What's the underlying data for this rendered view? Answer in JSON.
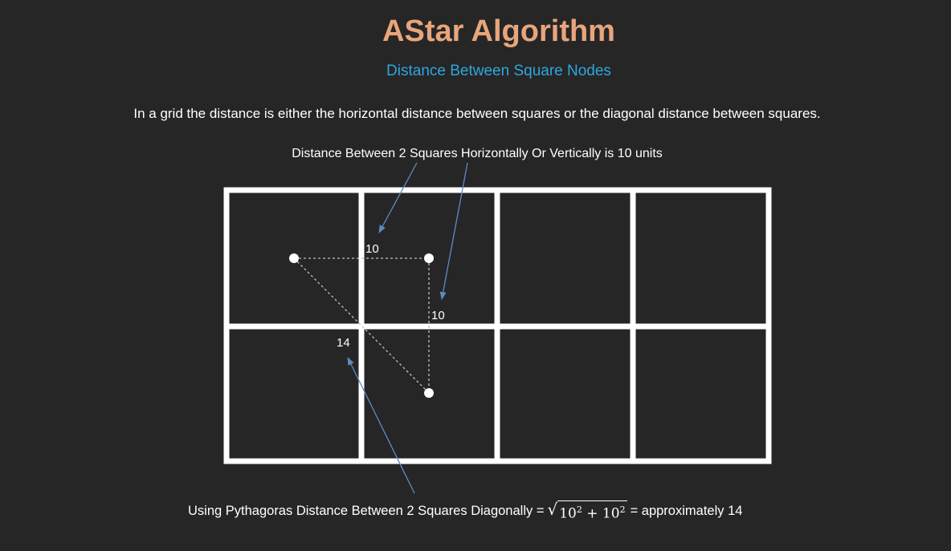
{
  "title": "AStar Algorithm",
  "subtitle": "Distance Between  Square Nodes",
  "intro": "In a grid the distance is either the horizontal distance between squares or the diagonal distance between squares.",
  "horizontal_caption": "Distance Between 2 Squares Horizontally Or Vertically is 10 units",
  "diagonal_caption": {
    "prefix": "Using Pythagoras Distance Between 2 Squares Diagonally =",
    "radicand_base_a": "10",
    "exponent_a": "2",
    "operator": "+",
    "radicand_base_b": "10",
    "exponent_b": "2",
    "suffix": "= approximately 14"
  },
  "grid": {
    "rows": 2,
    "cols": 4
  },
  "labels": {
    "horizontal": "10",
    "vertical": "10",
    "diagonal": "14"
  },
  "colors": {
    "background": "#262626",
    "title": "#e8a57c",
    "subtitle": "#2ea6de",
    "arrow": "#5b8cc4",
    "grid": "#ffffff"
  }
}
